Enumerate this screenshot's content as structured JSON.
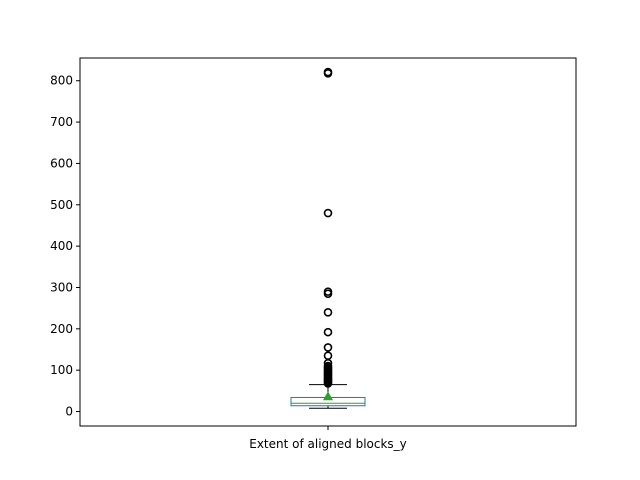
{
  "chart_data": {
    "type": "box",
    "category": "Extent of aligned blocks_y",
    "ylim": [
      -35,
      855
    ],
    "yticks": [
      0,
      100,
      200,
      300,
      400,
      500,
      600,
      700,
      800
    ],
    "box": {
      "whisker_low": 8,
      "q1": 14,
      "median": 20,
      "mean": 37,
      "q3": 34,
      "whisker_high": 65
    },
    "outliers": [
      68,
      71,
      74,
      77,
      80,
      83,
      86,
      89,
      92,
      95,
      98,
      101,
      104,
      107,
      110,
      117,
      135,
      155,
      192,
      240,
      285,
      290,
      480,
      818,
      821
    ],
    "colors": {
      "box": "#1f77b4",
      "median": "#2ca02c",
      "mean_marker": "#2ca02c",
      "whisker": "#000000",
      "outlier": "#000000"
    },
    "grid": false
  }
}
